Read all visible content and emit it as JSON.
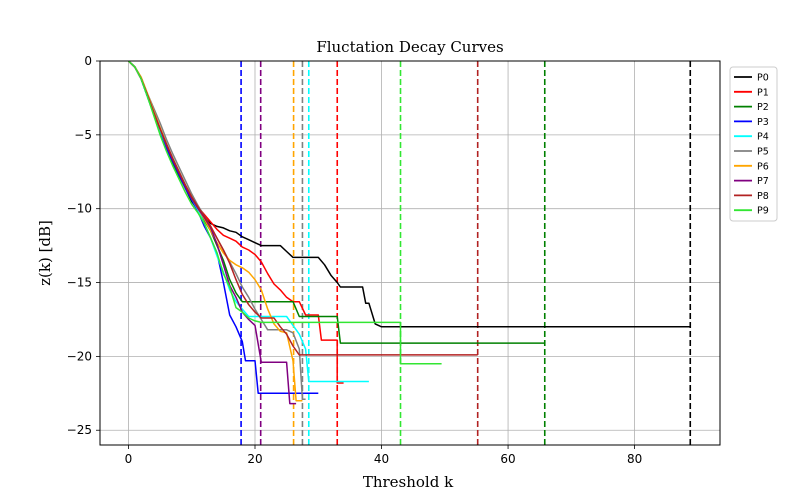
{
  "chart_data": {
    "type": "line",
    "title": "Fluctation Decay Curves",
    "xlabel": "Threshold k",
    "ylabel": "z(k) [dB]",
    "xlim": [
      -4.5,
      93.5
    ],
    "ylim": [
      -26,
      0
    ],
    "xticks": [
      0,
      20,
      40,
      60,
      80
    ],
    "yticks": [
      0,
      -5,
      -10,
      -15,
      -20,
      -25
    ],
    "grid": true,
    "legend_position": "right",
    "series": [
      {
        "name": "P0",
        "color": "#000000",
        "threshold": 88.8,
        "points": [
          [
            0,
            0
          ],
          [
            1,
            -0.4
          ],
          [
            2,
            -1.2
          ],
          [
            3,
            -2.4
          ],
          [
            4,
            -3.6
          ],
          [
            5,
            -4.8
          ],
          [
            6,
            -6.0
          ],
          [
            7,
            -6.8
          ],
          [
            8,
            -7.6
          ],
          [
            9,
            -8.6
          ],
          [
            10,
            -9.5
          ],
          [
            11,
            -10.1
          ],
          [
            12,
            -10.6
          ],
          [
            13,
            -11.0
          ],
          [
            14,
            -11.2
          ],
          [
            15,
            -11.3
          ],
          [
            16,
            -11.5
          ],
          [
            17,
            -11.6
          ],
          [
            18,
            -11.9
          ],
          [
            19,
            -12.1
          ],
          [
            20,
            -12.3
          ],
          [
            21,
            -12.5
          ],
          [
            24,
            -12.5
          ],
          [
            25,
            -12.9
          ],
          [
            26,
            -13.3
          ],
          [
            30,
            -13.3
          ],
          [
            31,
            -13.8
          ],
          [
            32,
            -14.5
          ],
          [
            33,
            -15.0
          ],
          [
            33.5,
            -15.3
          ],
          [
            37,
            -15.3
          ],
          [
            37.5,
            -16.4
          ],
          [
            38,
            -16.4
          ],
          [
            39,
            -17.8
          ],
          [
            40,
            -18.0
          ],
          [
            88.8,
            -18.0
          ]
        ]
      },
      {
        "name": "P1",
        "color": "#ff0000",
        "threshold": 33,
        "points": [
          [
            0,
            0
          ],
          [
            1,
            -0.4
          ],
          [
            2,
            -1.2
          ],
          [
            3,
            -2.3
          ],
          [
            4,
            -3.5
          ],
          [
            5,
            -4.6
          ],
          [
            6,
            -5.7
          ],
          [
            7,
            -6.7
          ],
          [
            8,
            -7.5
          ],
          [
            9,
            -8.4
          ],
          [
            10,
            -9.2
          ],
          [
            11,
            -9.9
          ],
          [
            12,
            -10.4
          ],
          [
            13,
            -10.9
          ],
          [
            14,
            -11.4
          ],
          [
            15,
            -11.8
          ],
          [
            16,
            -12.0
          ],
          [
            17,
            -12.2
          ],
          [
            18,
            -12.6
          ],
          [
            19,
            -12.8
          ],
          [
            20,
            -13.1
          ],
          [
            21,
            -13.6
          ],
          [
            22,
            -14.4
          ],
          [
            23,
            -15.1
          ],
          [
            24,
            -15.5
          ],
          [
            25,
            -16.0
          ],
          [
            26,
            -16.3
          ],
          [
            27,
            -16.3
          ],
          [
            28,
            -17.2
          ],
          [
            30,
            -17.2
          ],
          [
            30.5,
            -18.9
          ],
          [
            32,
            -18.9
          ],
          [
            33,
            -18.9
          ],
          [
            33,
            -21.8
          ],
          [
            34,
            -21.8
          ]
        ]
      },
      {
        "name": "P2",
        "color": "#008000",
        "threshold": 65.8,
        "points": [
          [
            0,
            0
          ],
          [
            1,
            -0.4
          ],
          [
            2,
            -1.2
          ],
          [
            3,
            -2.4
          ],
          [
            4,
            -3.6
          ],
          [
            5,
            -4.8
          ],
          [
            6,
            -6.0
          ],
          [
            7,
            -7.0
          ],
          [
            8,
            -7.8
          ],
          [
            9,
            -8.6
          ],
          [
            10,
            -9.4
          ],
          [
            11,
            -10.1
          ],
          [
            12,
            -10.8
          ],
          [
            13,
            -11.5
          ],
          [
            14,
            -12.5
          ],
          [
            15,
            -13.5
          ],
          [
            16,
            -14.8
          ],
          [
            17,
            -15.7
          ],
          [
            18,
            -16.3
          ],
          [
            26,
            -16.3
          ],
          [
            27,
            -17.3
          ],
          [
            33,
            -17.3
          ],
          [
            33.5,
            -19.1
          ],
          [
            65.8,
            -19.1
          ]
        ]
      },
      {
        "name": "P3",
        "color": "#0000ff",
        "threshold": 17.8,
        "points": [
          [
            0,
            0
          ],
          [
            1,
            -0.4
          ],
          [
            2,
            -1.2
          ],
          [
            3,
            -2.4
          ],
          [
            4,
            -3.6
          ],
          [
            5,
            -4.8
          ],
          [
            6,
            -5.9
          ],
          [
            7,
            -6.8
          ],
          [
            8,
            -7.7
          ],
          [
            9,
            -8.6
          ],
          [
            10,
            -9.4
          ],
          [
            11,
            -10.2
          ],
          [
            12,
            -11.2
          ],
          [
            13,
            -12.0
          ],
          [
            14,
            -13.0
          ],
          [
            15,
            -15.0
          ],
          [
            16,
            -17.2
          ],
          [
            17,
            -18.0
          ],
          [
            18,
            -19.0
          ],
          [
            18.5,
            -20.3
          ],
          [
            20,
            -20.3
          ],
          [
            20.5,
            -22.5
          ],
          [
            25,
            -22.5
          ],
          [
            30,
            -22.5
          ]
        ]
      },
      {
        "name": "P4",
        "color": "#00ffff",
        "threshold": 28.5,
        "points": [
          [
            0,
            0
          ],
          [
            1,
            -0.4
          ],
          [
            2,
            -1.2
          ],
          [
            3,
            -2.4
          ],
          [
            4,
            -3.6
          ],
          [
            5,
            -4.7
          ],
          [
            6,
            -5.7
          ],
          [
            7,
            -6.6
          ],
          [
            8,
            -7.5
          ],
          [
            9,
            -8.4
          ],
          [
            10,
            -9.3
          ],
          [
            11,
            -10.1
          ],
          [
            12,
            -11.0
          ],
          [
            13,
            -12.0
          ],
          [
            14,
            -13.2
          ],
          [
            15,
            -14.3
          ],
          [
            16,
            -15.5
          ],
          [
            17,
            -16.3
          ],
          [
            18,
            -16.8
          ],
          [
            19,
            -17.3
          ],
          [
            25,
            -17.3
          ],
          [
            26,
            -17.9
          ],
          [
            27,
            -18.5
          ],
          [
            28,
            -19.5
          ],
          [
            28.5,
            -21.7
          ],
          [
            38,
            -21.7
          ]
        ]
      },
      {
        "name": "P5",
        "color": "#808080",
        "threshold": 27.5,
        "points": [
          [
            0,
            0
          ],
          [
            1,
            -0.4
          ],
          [
            2,
            -1.1
          ],
          [
            3,
            -2.2
          ],
          [
            4,
            -3.2
          ],
          [
            5,
            -4.2
          ],
          [
            6,
            -5.3
          ],
          [
            7,
            -6.3
          ],
          [
            8,
            -7.2
          ],
          [
            9,
            -8.1
          ],
          [
            10,
            -9.0
          ],
          [
            11,
            -9.8
          ],
          [
            12,
            -10.5
          ],
          [
            13,
            -11.2
          ],
          [
            14,
            -12.0
          ],
          [
            15,
            -12.8
          ],
          [
            16,
            -13.6
          ],
          [
            17,
            -14.4
          ],
          [
            18,
            -15.3
          ],
          [
            19,
            -16.0
          ],
          [
            20,
            -16.8
          ],
          [
            21,
            -17.5
          ],
          [
            22,
            -18.2
          ],
          [
            25,
            -18.2
          ],
          [
            26,
            -18.4
          ],
          [
            27,
            -19.5
          ],
          [
            27.5,
            -22.9
          ],
          [
            28,
            -22.9
          ]
        ]
      },
      {
        "name": "P6",
        "color": "#ffa500",
        "threshold": 26.1,
        "points": [
          [
            0,
            0
          ],
          [
            1,
            -0.4
          ],
          [
            2,
            -1.1
          ],
          [
            3,
            -2.2
          ],
          [
            4,
            -3.4
          ],
          [
            5,
            -4.5
          ],
          [
            6,
            -5.6
          ],
          [
            7,
            -6.6
          ],
          [
            8,
            -7.5
          ],
          [
            9,
            -8.4
          ],
          [
            10,
            -9.2
          ],
          [
            11,
            -10.0
          ],
          [
            12,
            -10.7
          ],
          [
            13,
            -11.5
          ],
          [
            14,
            -12.3
          ],
          [
            15,
            -13.0
          ],
          [
            16,
            -13.5
          ],
          [
            17,
            -13.8
          ],
          [
            18,
            -14.0
          ],
          [
            19,
            -14.3
          ],
          [
            20,
            -14.8
          ],
          [
            21,
            -15.5
          ],
          [
            22,
            -16.8
          ],
          [
            23,
            -17.8
          ],
          [
            24,
            -18.3
          ],
          [
            25,
            -18.4
          ],
          [
            26,
            -20.3
          ],
          [
            26.5,
            -23.0
          ],
          [
            27.5,
            -23.0
          ]
        ]
      },
      {
        "name": "P7",
        "color": "#800080",
        "threshold": 20.9,
        "points": [
          [
            0,
            0
          ],
          [
            1,
            -0.4
          ],
          [
            2,
            -1.2
          ],
          [
            3,
            -2.3
          ],
          [
            4,
            -3.5
          ],
          [
            5,
            -4.6
          ],
          [
            6,
            -5.7
          ],
          [
            7,
            -6.7
          ],
          [
            8,
            -7.6
          ],
          [
            9,
            -8.5
          ],
          [
            10,
            -9.3
          ],
          [
            11,
            -10.0
          ],
          [
            12,
            -10.6
          ],
          [
            13,
            -11.3
          ],
          [
            14,
            -12.4
          ],
          [
            15,
            -13.8
          ],
          [
            16,
            -15.2
          ],
          [
            17,
            -16.0
          ],
          [
            18,
            -17.0
          ],
          [
            19,
            -17.5
          ],
          [
            20,
            -17.9
          ],
          [
            21,
            -20.4
          ],
          [
            25,
            -20.4
          ],
          [
            25.5,
            -23.2
          ],
          [
            26.5,
            -23.2
          ]
        ]
      },
      {
        "name": "P8",
        "color": "#b22222",
        "threshold": 55.2,
        "points": [
          [
            0,
            0
          ],
          [
            1,
            -0.4
          ],
          [
            2,
            -1.2
          ],
          [
            3,
            -2.3
          ],
          [
            4,
            -3.5
          ],
          [
            5,
            -4.6
          ],
          [
            6,
            -5.6
          ],
          [
            7,
            -6.6
          ],
          [
            8,
            -7.5
          ],
          [
            9,
            -8.4
          ],
          [
            10,
            -9.2
          ],
          [
            11,
            -9.9
          ],
          [
            12,
            -10.5
          ],
          [
            13,
            -11.2
          ],
          [
            14,
            -12.0
          ],
          [
            15,
            -12.8
          ],
          [
            16,
            -13.7
          ],
          [
            17,
            -14.8
          ],
          [
            18,
            -15.8
          ],
          [
            19,
            -16.5
          ],
          [
            20,
            -17.0
          ],
          [
            21,
            -17.4
          ],
          [
            23,
            -17.4
          ],
          [
            24,
            -18.0
          ],
          [
            25,
            -18.5
          ],
          [
            26,
            -19.3
          ],
          [
            27,
            -19.9
          ],
          [
            55.2,
            -19.9
          ]
        ]
      },
      {
        "name": "P9",
        "color": "#32e632",
        "threshold": 43,
        "points": [
          [
            0,
            0
          ],
          [
            1,
            -0.4
          ],
          [
            2,
            -1.2
          ],
          [
            3,
            -2.4
          ],
          [
            4,
            -3.7
          ],
          [
            5,
            -5.0
          ],
          [
            6,
            -6.1
          ],
          [
            7,
            -7.1
          ],
          [
            8,
            -8.0
          ],
          [
            9,
            -8.9
          ],
          [
            10,
            -9.7
          ],
          [
            11,
            -10.3
          ],
          [
            12,
            -11.0
          ],
          [
            13,
            -12.0
          ],
          [
            14,
            -13.0
          ],
          [
            15,
            -14.4
          ],
          [
            16,
            -15.3
          ],
          [
            17,
            -16.7
          ],
          [
            18,
            -17.0
          ],
          [
            19,
            -17.4
          ],
          [
            20,
            -17.6
          ],
          [
            21,
            -17.7
          ],
          [
            43,
            -17.7
          ],
          [
            43,
            -20.5
          ],
          [
            49.5,
            -20.5
          ]
        ]
      }
    ]
  }
}
